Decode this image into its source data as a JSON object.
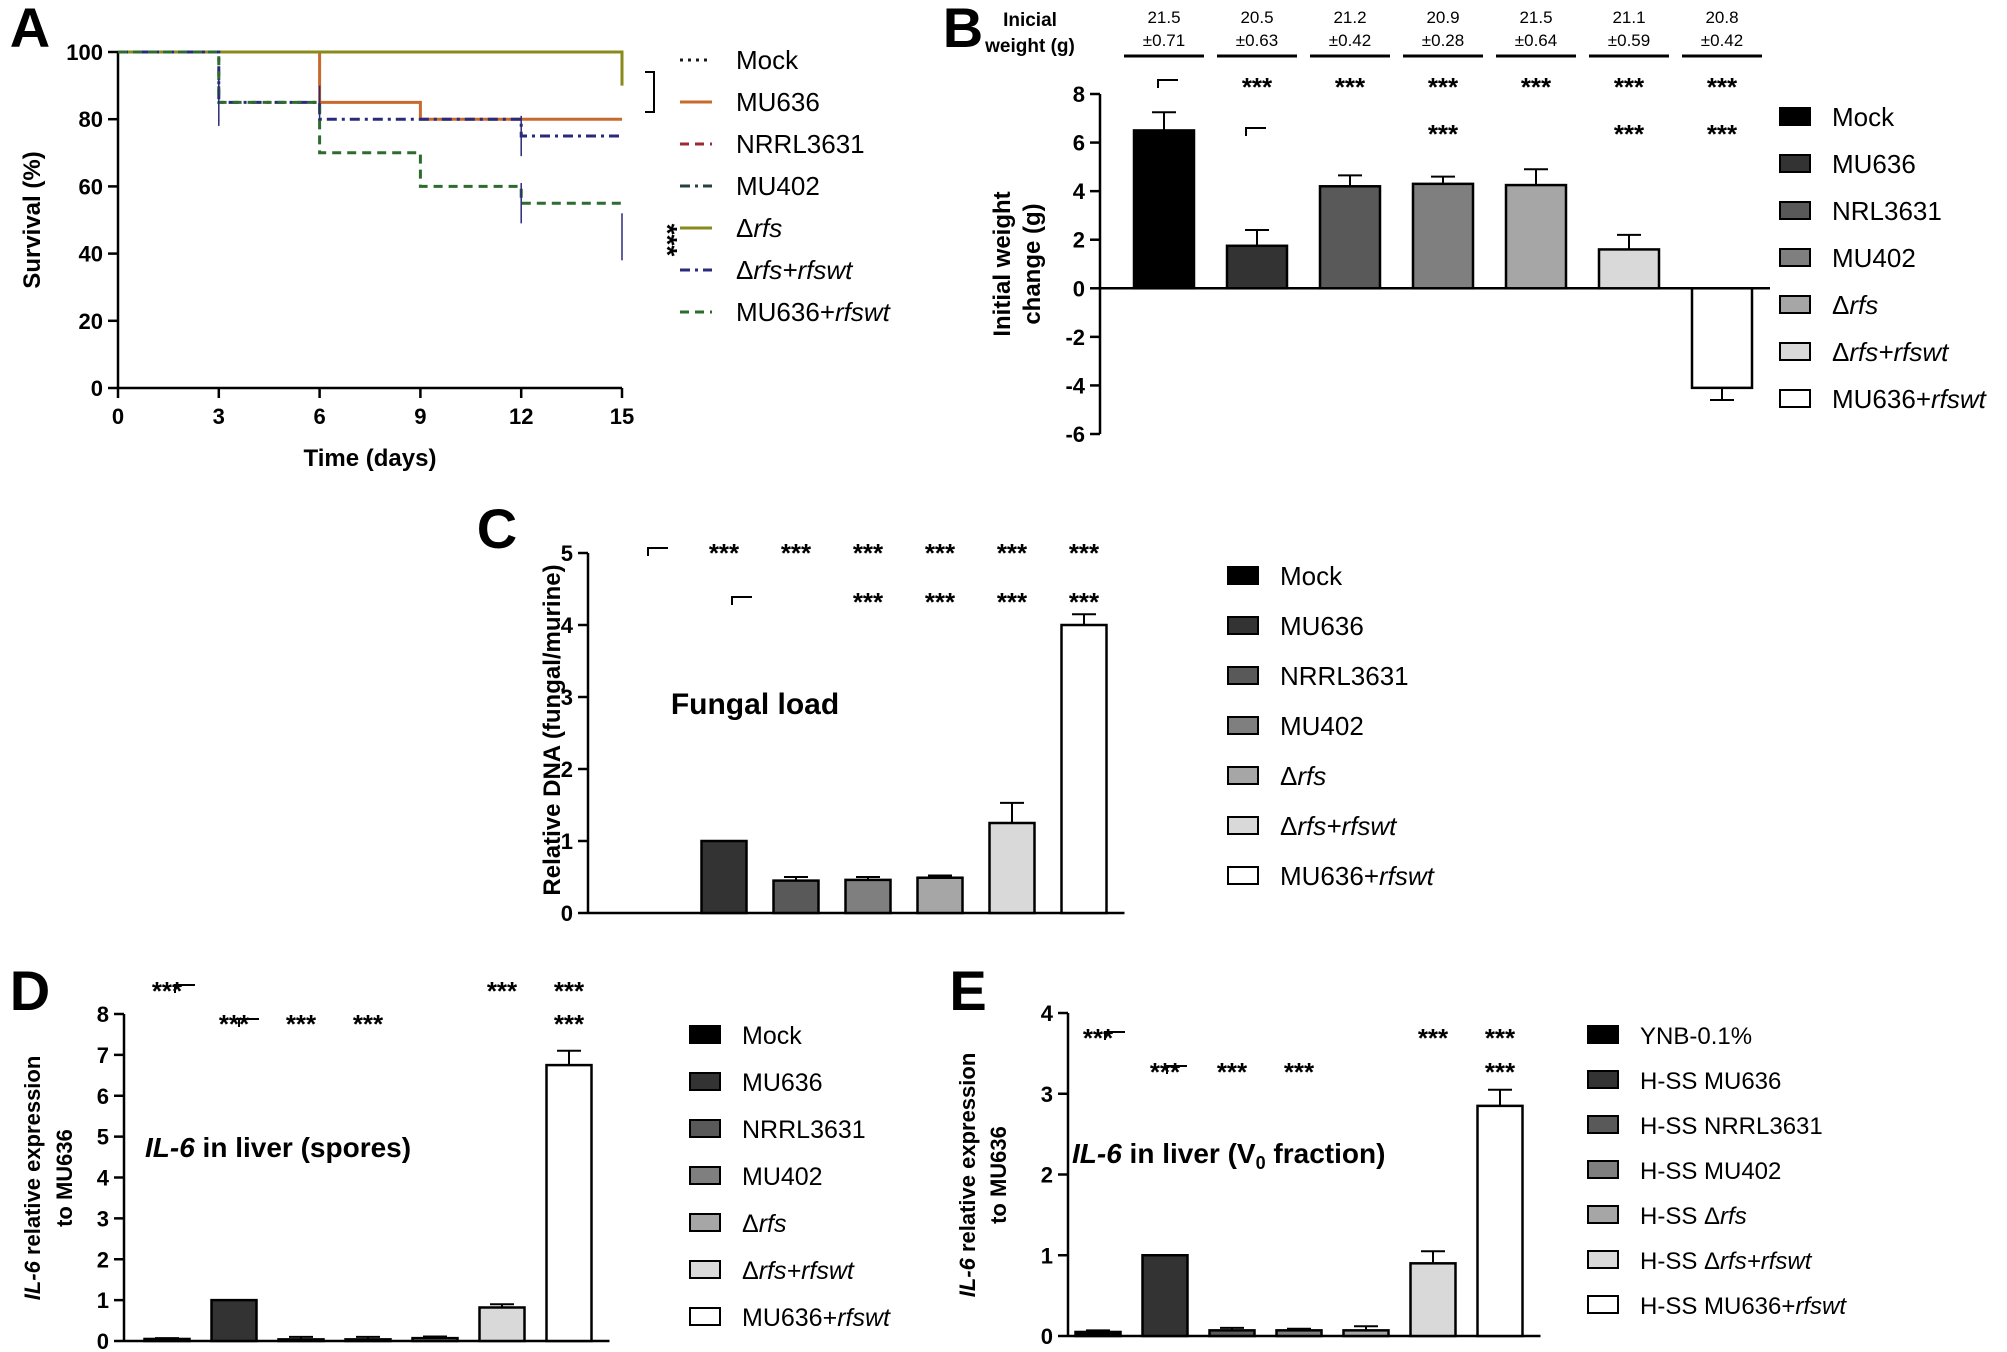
{
  "chart_data": [
    {
      "panel": "A",
      "type": "line",
      "xlabel": "Time (days)",
      "ylabel": "Survival (%)",
      "xlim": [
        0,
        15
      ],
      "ylim": [
        0,
        100
      ],
      "xticks": [
        "0",
        "3",
        "6",
        "9",
        "12",
        "15"
      ],
      "yticks": [
        "0",
        "20",
        "40",
        "60",
        "80",
        "100"
      ],
      "legend_position": "right",
      "series": [
        {
          "name": "Mock",
          "name_italic": "",
          "color": "#1a1a1a",
          "dash": "dot",
          "x": [
            0,
            15
          ],
          "y": [
            100,
            100
          ]
        },
        {
          "name": "MU636",
          "name_italic": "",
          "color": "#c8692e",
          "dash": "solid",
          "x": [
            0,
            6,
            6,
            9,
            9,
            15
          ],
          "y": [
            100,
            100,
            85,
            85,
            80,
            80
          ]
        },
        {
          "name": "NRRL3631",
          "name_italic": "",
          "color": "#9e2a33",
          "dash": "dash",
          "x": [
            0,
            15
          ],
          "y": [
            100,
            100
          ]
        },
        {
          "name": "MU402",
          "name_italic": "",
          "color": "#2a3f44",
          "dash": "dashdot",
          "x": [
            0,
            15
          ],
          "y": [
            100,
            100
          ]
        },
        {
          "name": "Δ",
          "name_italic": "rfs",
          "color": "#8a8a1c",
          "dash": "solid",
          "x": [
            0,
            15,
            15
          ],
          "y": [
            100,
            100,
            90
          ]
        },
        {
          "name": "Δ",
          "name_italic": "rfs+rfswt",
          "color": "#2a2a7a",
          "dash": "dashdot",
          "x": [
            0,
            3,
            3,
            6,
            6,
            12,
            12,
            15
          ],
          "y": [
            100,
            100,
            85,
            85,
            80,
            80,
            75,
            75
          ]
        },
        {
          "name": "MU636+",
          "name_italic": "rfswt",
          "color": "#2e6b2e",
          "dash": "dash",
          "x": [
            0,
            3,
            3,
            6,
            6,
            9,
            9,
            12,
            12,
            15
          ],
          "y": [
            100,
            100,
            85,
            85,
            70,
            70,
            60,
            60,
            55,
            55
          ]
        }
      ],
      "annotations": [
        "***"
      ]
    },
    {
      "panel": "B",
      "type": "bar",
      "ylabel_lines": [
        "Initial weight",
        "change (g)"
      ],
      "ylim": [
        -6,
        8
      ],
      "yticks": [
        "-6",
        "-4",
        "-2",
        "0",
        "2",
        "4",
        "6",
        "8"
      ],
      "header_label_lines": [
        "Inicial",
        "weight (g)"
      ],
      "initial_weight_mean": [
        "21.5",
        "20.5",
        "21.2",
        "20.9",
        "21.5",
        "21.1",
        "20.8"
      ],
      "initial_weight_sd": [
        "±0.71",
        "±0.63",
        "±0.42",
        "±0.28",
        "±0.64",
        "±0.59",
        "±0.42"
      ],
      "categories": [
        {
          "name": "Mock",
          "italic": ""
        },
        {
          "name": "MU636",
          "italic": ""
        },
        {
          "name": "NRL3631",
          "italic": ""
        },
        {
          "name": "MU402",
          "italic": ""
        },
        {
          "name": "Δ",
          "italic": "rfs"
        },
        {
          "name": "Δ",
          "italic": "rfs+rfswt"
        },
        {
          "name": "MU636+",
          "italic": "rfswt"
        }
      ],
      "values": [
        6.5,
        1.75,
        4.2,
        4.3,
        4.25,
        1.6,
        -4.1
      ],
      "errors": [
        0.75,
        0.65,
        0.45,
        0.3,
        0.65,
        0.6,
        0.5
      ],
      "colors": [
        "#000000",
        "#333333",
        "#595959",
        "#7f7f7f",
        "#a6a6a6",
        "#d9d9d9",
        "#ffffff"
      ],
      "sig_row1": [
        "",
        "***",
        "***",
        "***",
        "***",
        "***",
        "***"
      ],
      "sig_row2": [
        "",
        "",
        "",
        "***",
        "",
        "***",
        "***"
      ],
      "legend_position": "right"
    },
    {
      "panel": "C",
      "type": "bar",
      "ylabel": "Relative DNA (fungal/murine)",
      "inset_title": "Fungal load",
      "ylim": [
        0,
        5
      ],
      "yticks": [
        "0",
        "1",
        "2",
        "3",
        "4",
        "5"
      ],
      "categories": [
        {
          "name": "Mock",
          "italic": ""
        },
        {
          "name": "MU636",
          "italic": ""
        },
        {
          "name": "NRRL3631",
          "italic": ""
        },
        {
          "name": "MU402",
          "italic": ""
        },
        {
          "name": "Δ",
          "italic": "rfs"
        },
        {
          "name": "Δ",
          "italic": "rfs+rfswt"
        },
        {
          "name": "MU636+",
          "italic": "rfswt"
        }
      ],
      "values": [
        0,
        1.0,
        0.45,
        0.46,
        0.49,
        1.25,
        4.0
      ],
      "errors": [
        0,
        0,
        0.05,
        0.04,
        0.03,
        0.28,
        0.15
      ],
      "colors": [
        "#000000",
        "#333333",
        "#595959",
        "#7f7f7f",
        "#a6a6a6",
        "#d9d9d9",
        "#ffffff"
      ],
      "sig_row1": [
        "",
        "***",
        "***",
        "***",
        "***",
        "***",
        "***"
      ],
      "sig_row2": [
        "",
        "",
        "",
        "***",
        "***",
        "***",
        "***"
      ],
      "legend_position": "right"
    },
    {
      "panel": "D",
      "type": "bar",
      "ylabel_italic": "IL-6",
      "ylabel_rest": " relative expression",
      "ylabel_line2": "to MU636",
      "inset_title_italic": "IL-6",
      "inset_title_rest": " in liver (spores)",
      "ylim": [
        0,
        8
      ],
      "yticks": [
        "0",
        "1",
        "2",
        "3",
        "4",
        "5",
        "6",
        "7",
        "8"
      ],
      "categories": [
        {
          "name": "Mock",
          "italic": ""
        },
        {
          "name": "MU636",
          "italic": ""
        },
        {
          "name": "NRRL3631",
          "italic": ""
        },
        {
          "name": "MU402",
          "italic": ""
        },
        {
          "name": "Δ",
          "italic": "rfs"
        },
        {
          "name": "Δ",
          "italic": "rfs+rfswt"
        },
        {
          "name": "MU636+",
          "italic": "rfswt"
        }
      ],
      "values": [
        0.05,
        1.0,
        0.04,
        0.04,
        0.07,
        0.82,
        6.75
      ],
      "errors": [
        0.02,
        0,
        0.06,
        0.06,
        0.04,
        0.08,
        0.35
      ],
      "colors": [
        "#000000",
        "#333333",
        "#595959",
        "#7f7f7f",
        "#a6a6a6",
        "#d9d9d9",
        "#ffffff"
      ],
      "sig_row1": [
        "***",
        "",
        "",
        "",
        "",
        "***",
        "***"
      ],
      "sig_row2": [
        "",
        "***",
        "***",
        "***",
        "",
        "",
        "***"
      ],
      "legend_position": "right"
    },
    {
      "panel": "E",
      "type": "bar",
      "ylabel_italic": "IL-6",
      "ylabel_rest": " relative expression",
      "ylabel_line2": "to MU636",
      "inset_title_italic": "IL-6",
      "inset_title_rest": " in liver (V",
      "inset_title_sub": "0",
      "inset_title_end": " fraction)",
      "ylim": [
        0,
        4
      ],
      "yticks": [
        "0",
        "1",
        "2",
        "3",
        "4"
      ],
      "categories": [
        {
          "name": "YNB-0.1%",
          "italic": ""
        },
        {
          "name": "H-SS MU636",
          "italic": ""
        },
        {
          "name": "H-SS NRRL3631",
          "italic": ""
        },
        {
          "name": "H-SS MU402",
          "italic": ""
        },
        {
          "name": "H-SS Δ",
          "italic": "rfs"
        },
        {
          "name": "H-SS Δ",
          "italic": "rfs+rfswt"
        },
        {
          "name": "H-SS MU636+",
          "italic": "rfswt"
        }
      ],
      "values": [
        0.05,
        1.0,
        0.07,
        0.07,
        0.07,
        0.9,
        2.85
      ],
      "errors": [
        0.02,
        0,
        0.03,
        0.02,
        0.05,
        0.15,
        0.2
      ],
      "colors": [
        "#000000",
        "#333333",
        "#595959",
        "#7f7f7f",
        "#a6a6a6",
        "#d9d9d9",
        "#ffffff"
      ],
      "sig_row1": [
        "***",
        "",
        "",
        "",
        "",
        "***",
        "***"
      ],
      "sig_row2": [
        "",
        "***",
        "***",
        "***",
        "",
        "",
        "***"
      ],
      "legend_position": "right"
    }
  ],
  "panel_letters": [
    "A",
    "B",
    "C",
    "D",
    "E"
  ]
}
